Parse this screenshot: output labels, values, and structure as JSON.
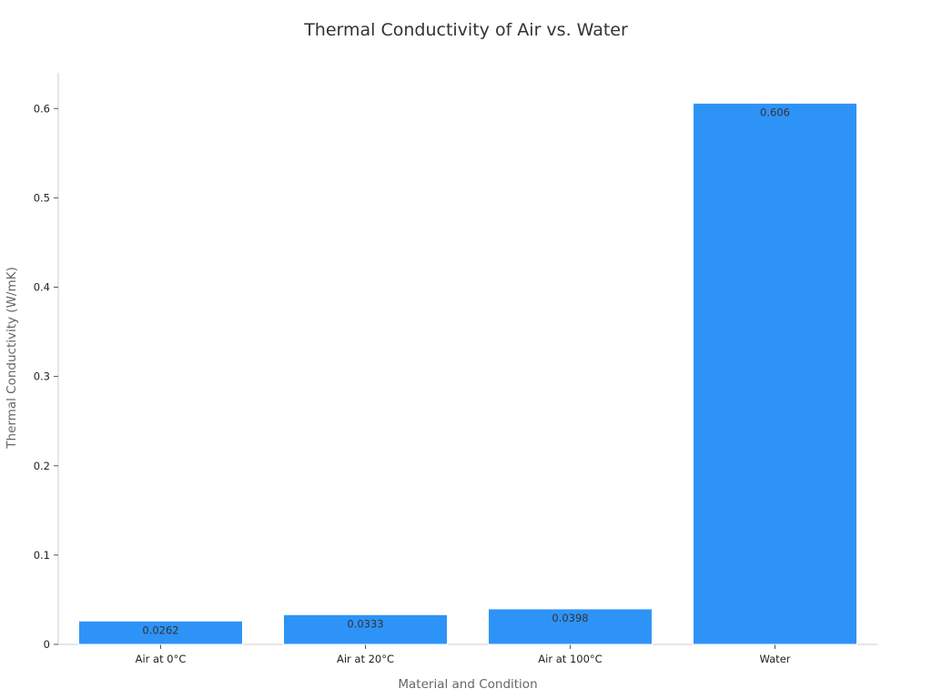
{
  "chart_data": {
    "type": "bar",
    "title": "Thermal Conductivity of Air vs. Water",
    "xlabel": "Material and Condition",
    "ylabel": "Thermal Conductivity (W/mK)",
    "categories": [
      "Air at 0°C",
      "Air at 20°C",
      "Air at 100°C",
      "Water"
    ],
    "values": [
      0.0262,
      0.0333,
      0.0398,
      0.606
    ],
    "data_labels": [
      "0.0262",
      "0.0333",
      "0.0398",
      "0.606"
    ],
    "ylim": [
      0,
      0.64
    ],
    "yticks": [
      0,
      0.1,
      0.2,
      0.3,
      0.4,
      0.5,
      0.6
    ],
    "ytick_labels": [
      "0",
      "0.1",
      "0.2",
      "0.3",
      "0.4",
      "0.5",
      "0.6"
    ],
    "grid": false,
    "legend": "none",
    "colors": {
      "bar": "#2e93f7",
      "bar_edge": "#ffffff",
      "axis": "#cccccc",
      "title": "#333333",
      "axis_title": "#666666",
      "tick": "#222222"
    }
  }
}
